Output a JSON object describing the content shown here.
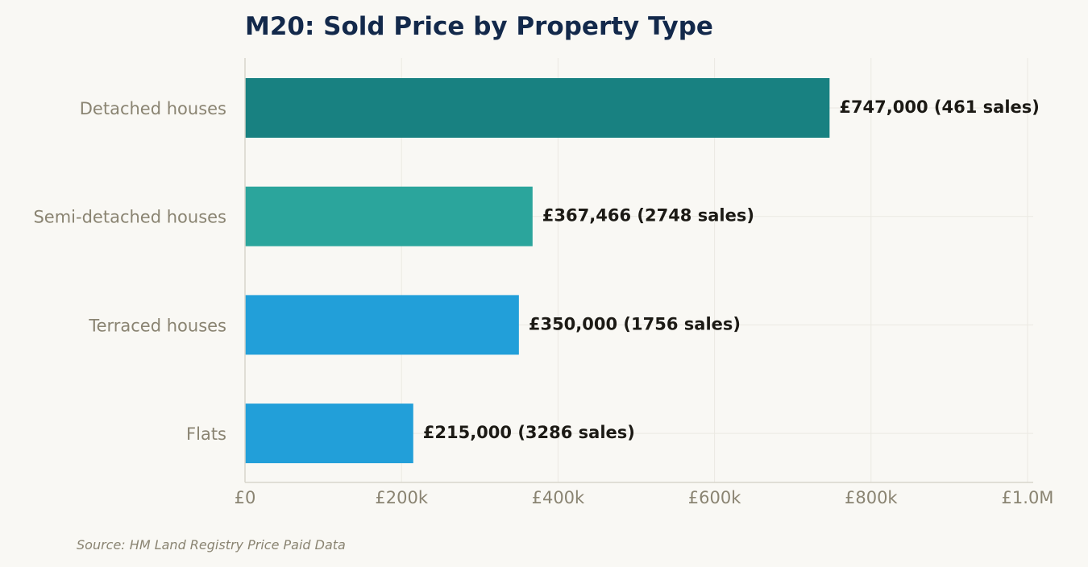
{
  "chart_data": {
    "type": "bar",
    "orientation": "horizontal",
    "title": "M20: Sold Price by Property Type",
    "categories": [
      "Detached houses",
      "Semi-detached houses",
      "Terraced houses",
      "Flats"
    ],
    "values": [
      747000,
      367466,
      350000,
      215000
    ],
    "sales": [
      461,
      2748,
      1756,
      3286
    ],
    "data_labels": [
      "£747,000  (461 sales)",
      "£367,466  (2748 sales)",
      "£350,000  (1756 sales)",
      "£215,000  (3286 sales)"
    ],
    "bar_colors": [
      "#188181",
      "#2ba59c",
      "#229fd9",
      "#229fd9"
    ],
    "xlim": [
      0,
      1000000
    ],
    "x_ticks": [
      0,
      200000,
      400000,
      600000,
      800000,
      1000000
    ],
    "x_tick_labels": [
      "£0",
      "£200k",
      "£400k",
      "£600k",
      "£800k",
      "£1.0M"
    ],
    "xlabel": "",
    "ylabel": "",
    "grid": true,
    "source": "Source: HM Land Registry Price Paid Data"
  }
}
